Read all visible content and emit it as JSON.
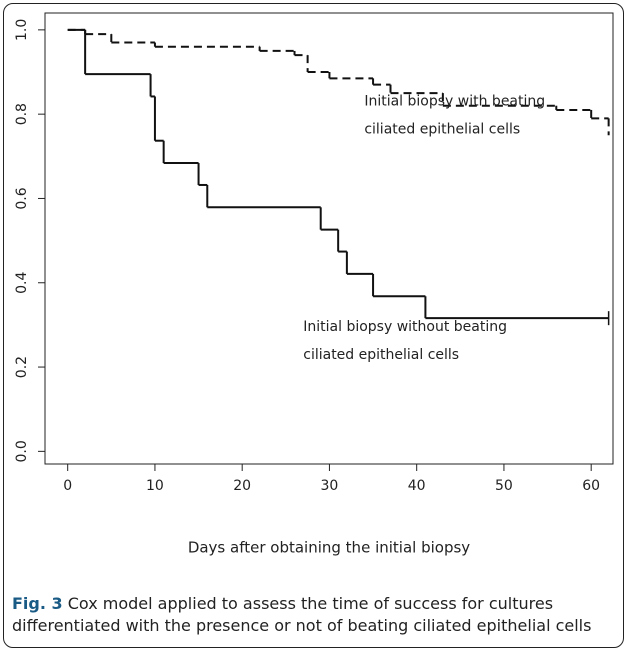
{
  "chart_data": {
    "type": "step",
    "xlabel": "Days after obtaining the initial biopsy",
    "xlim": [
      -2.6,
      62.5
    ],
    "ylim": [
      -0.03,
      1.04
    ],
    "xticks": [
      0,
      10,
      20,
      30,
      40,
      50,
      60
    ],
    "yticks": [
      {
        "value": 0,
        "label": "0.0"
      },
      {
        "value": 0.2,
        "label": "0.2"
      },
      {
        "value": 0.4,
        "label": "0.4"
      },
      {
        "value": 0.6,
        "label": "0.6"
      },
      {
        "value": 0.8,
        "label": "0.8"
      },
      {
        "value": 1,
        "label": "1.0"
      }
    ],
    "series": [
      {
        "name": "Initial biopsy with beating ciliated epithelial cells",
        "color": "#111111",
        "dash": true,
        "censor": false,
        "x": [
          0,
          2,
          5,
          10,
          22,
          26,
          27.5,
          30,
          35,
          37,
          43,
          56,
          60,
          62
        ],
        "values": [
          1.0,
          0.99,
          0.97,
          0.96,
          0.95,
          0.94,
          0.9,
          0.885,
          0.87,
          0.85,
          0.82,
          0.81,
          0.79,
          0.75
        ]
      },
      {
        "name": "Initial biopsy without beating ciliated epithelial cells",
        "color": "#111111",
        "dash": false,
        "censor": true,
        "x": [
          0,
          2,
          9.5,
          10,
          11,
          15,
          16,
          29,
          31,
          32,
          35,
          41,
          62
        ],
        "values": [
          1.0,
          0.895,
          0.842,
          0.737,
          0.684,
          0.632,
          0.579,
          0.526,
          0.474,
          0.421,
          0.368,
          0.316,
          0.316
        ]
      }
    ],
    "annotations": [
      {
        "lines": [
          "Initial biopsy with beating",
          "ciliated epithelial cells"
        ],
        "x": 34,
        "y": 0.83
      },
      {
        "lines": [
          "Initial biopsy without beating",
          "ciliated epithelial cells"
        ],
        "x": 27,
        "y": 0.295
      }
    ]
  },
  "caption": {
    "label": "Fig. 3",
    "lines": [
      "Cox model applied to assess the time of success for cultures",
      "differentiated with the presence or not of beating ciliated epithelial cells"
    ]
  }
}
